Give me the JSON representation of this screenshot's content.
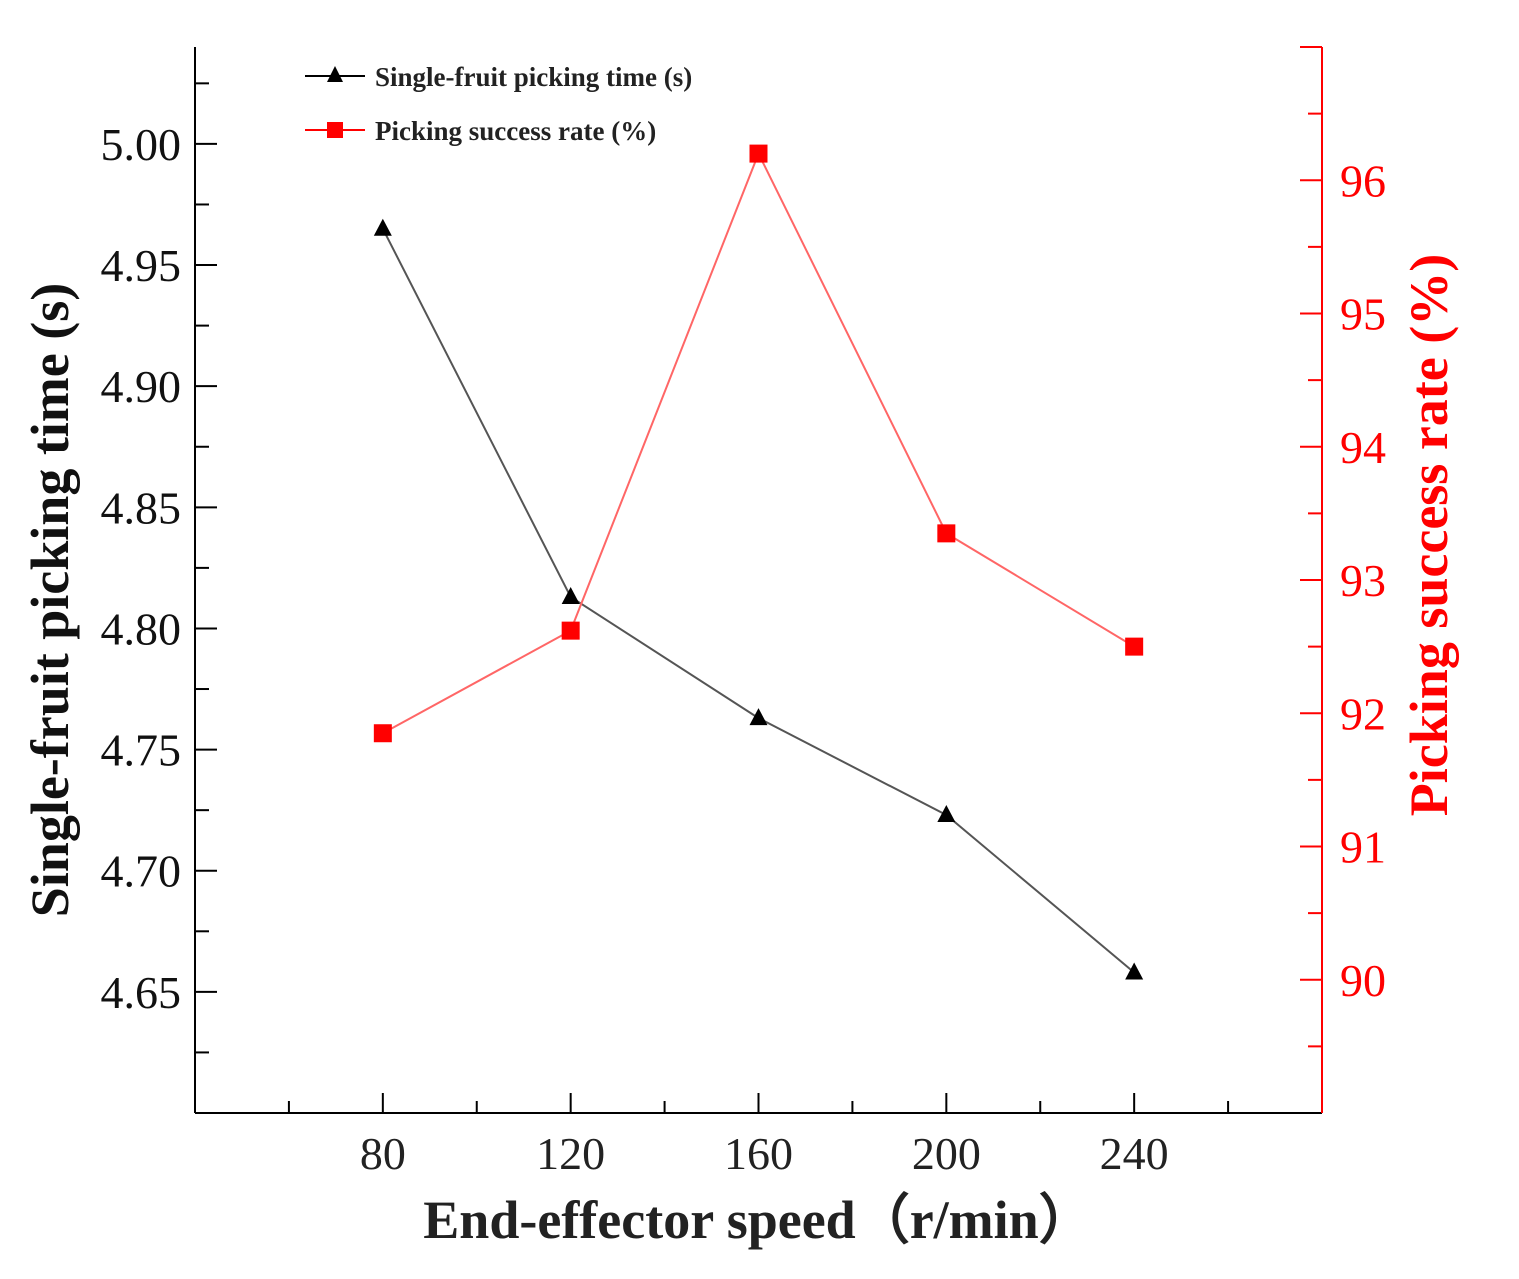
{
  "chart_data": {
    "type": "line",
    "x": [
      80,
      120,
      160,
      200,
      240
    ],
    "series": [
      {
        "name": "Single-fruit picking time (s)",
        "axis": "left",
        "values": [
          4.965,
          4.813,
          4.763,
          4.723,
          4.658
        ],
        "color": "#000000",
        "marker": "triangle"
      },
      {
        "name": "Picking success rate (%)",
        "axis": "right",
        "values": [
          91.85,
          92.62,
          96.2,
          93.35,
          92.5
        ],
        "color": "#ff0000",
        "marker": "square"
      }
    ],
    "xlabel": "End-effector speed（r/min）",
    "ylabel_left": "Single-fruit picking time (s)",
    "ylabel_right": "Picking success rate (%)",
    "xlim": [
      40,
      280
    ],
    "ylim_left": [
      4.6,
      5.04
    ],
    "ylim_right": [
      89.0,
      97.0
    ],
    "xticks": [
      "80",
      "120",
      "160",
      "200",
      "240"
    ],
    "yticks_left": [
      "5.00",
      "4.95",
      "4.90",
      "4.85",
      "4.80",
      "4.75",
      "4.70",
      "4.65"
    ],
    "yticks_right": [
      "96",
      "95",
      "94",
      "93",
      "92",
      "91",
      "90"
    ],
    "legend_position": "top-left",
    "grid": false,
    "right_axis_color": "#ff0000"
  }
}
